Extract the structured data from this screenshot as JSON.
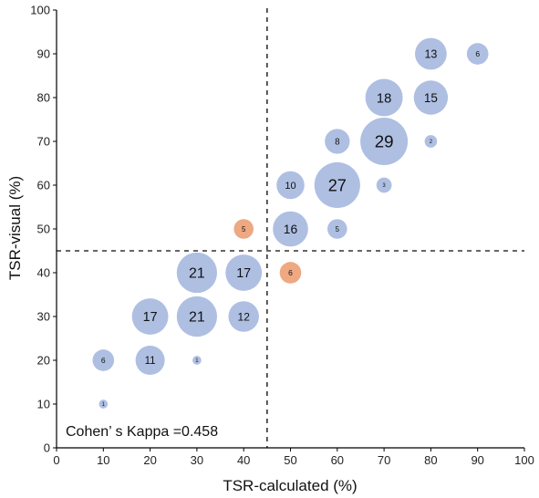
{
  "chart_data": {
    "type": "scatter",
    "xlabel": "TSR-calculated (%)",
    "ylabel": "TSR-visual (%)",
    "xlim": [
      0,
      100
    ],
    "ylim": [
      0,
      100
    ],
    "xticks": [
      "0",
      "10",
      "20",
      "30",
      "40",
      "50",
      "60",
      "70",
      "80",
      "90",
      "100"
    ],
    "yticks": [
      "0",
      "10",
      "20",
      "30",
      "40",
      "50",
      "60",
      "70",
      "80",
      "90",
      "100"
    ],
    "grid": false,
    "cutoff_x": 45,
    "cutoff_y": 45,
    "annotation": "Cohen’ s Kappa =0.458",
    "colors": {
      "concordant": "#aebfe2",
      "discordant": "#eea882"
    },
    "points": [
      {
        "x": 10,
        "y": 10,
        "n": 1,
        "group": "concordant"
      },
      {
        "x": 10,
        "y": 20,
        "n": 6,
        "group": "concordant"
      },
      {
        "x": 20,
        "y": 20,
        "n": 11,
        "group": "concordant"
      },
      {
        "x": 30,
        "y": 20,
        "n": 1,
        "group": "concordant"
      },
      {
        "x": 20,
        "y": 30,
        "n": 17,
        "group": "concordant"
      },
      {
        "x": 30,
        "y": 30,
        "n": 21,
        "group": "concordant"
      },
      {
        "x": 40,
        "y": 30,
        "n": 12,
        "group": "concordant"
      },
      {
        "x": 30,
        "y": 40,
        "n": 21,
        "group": "concordant"
      },
      {
        "x": 40,
        "y": 40,
        "n": 17,
        "group": "concordant"
      },
      {
        "x": 50,
        "y": 40,
        "n": 6,
        "group": "discordant"
      },
      {
        "x": 40,
        "y": 50,
        "n": 5,
        "group": "discordant"
      },
      {
        "x": 50,
        "y": 50,
        "n": 16,
        "group": "concordant"
      },
      {
        "x": 60,
        "y": 50,
        "n": 5,
        "group": "concordant"
      },
      {
        "x": 50,
        "y": 60,
        "n": 10,
        "group": "concordant"
      },
      {
        "x": 60,
        "y": 60,
        "n": 27,
        "group": "concordant"
      },
      {
        "x": 70,
        "y": 60,
        "n": 3,
        "group": "concordant"
      },
      {
        "x": 60,
        "y": 70,
        "n": 8,
        "group": "concordant"
      },
      {
        "x": 70,
        "y": 70,
        "n": 29,
        "group": "concordant"
      },
      {
        "x": 80,
        "y": 70,
        "n": 2,
        "group": "concordant"
      },
      {
        "x": 70,
        "y": 80,
        "n": 18,
        "group": "concordant"
      },
      {
        "x": 80,
        "y": 80,
        "n": 15,
        "group": "concordant"
      },
      {
        "x": 80,
        "y": 90,
        "n": 13,
        "group": "concordant"
      },
      {
        "x": 90,
        "y": 90,
        "n": 6,
        "group": "concordant"
      }
    ]
  }
}
